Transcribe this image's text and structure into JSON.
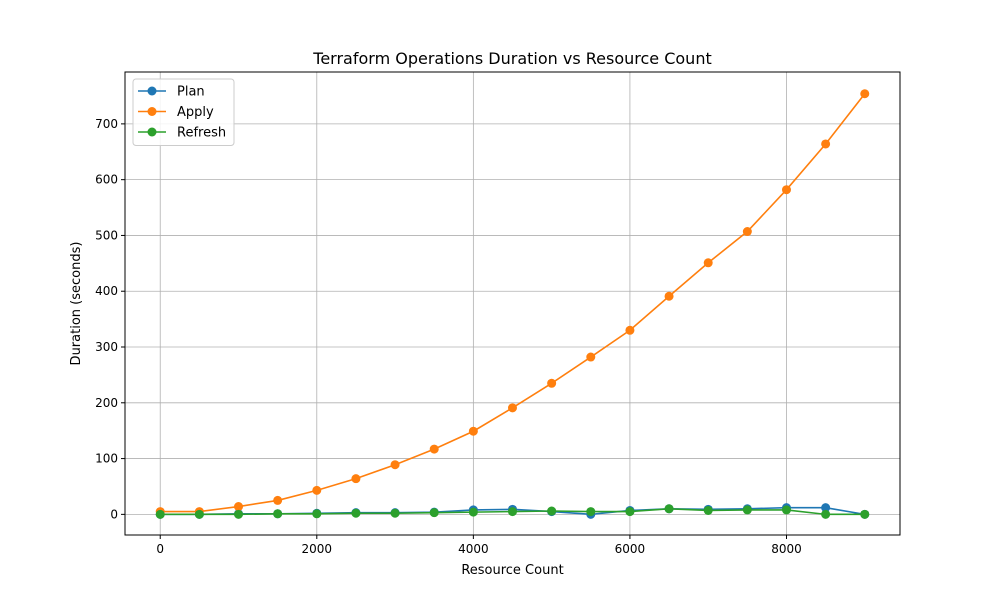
{
  "chart_data": {
    "type": "line",
    "title": "Terraform Operations Duration vs Resource Count",
    "xlabel": "Resource Count",
    "ylabel": "Duration (seconds)",
    "xlim": [
      -450,
      9450
    ],
    "ylim": [
      -37,
      793
    ],
    "x_ticks": [
      0,
      2000,
      4000,
      6000,
      8000
    ],
    "y_ticks": [
      0,
      100,
      200,
      300,
      400,
      500,
      600,
      700
    ],
    "grid": true,
    "legend_position": "top-left",
    "x": [
      0,
      500,
      1000,
      1500,
      2000,
      2500,
      3000,
      3500,
      4000,
      4500,
      5000,
      5500,
      6000,
      6500,
      7000,
      7500,
      8000,
      8500,
      9000
    ],
    "series": [
      {
        "name": "Plan",
        "color": "#1f77b4",
        "values": [
          0,
          0,
          1,
          1,
          2,
          3,
          3,
          4,
          8,
          9,
          5,
          0,
          7,
          10,
          9,
          10,
          12,
          12,
          0
        ]
      },
      {
        "name": "Apply",
        "color": "#ff7f0e",
        "values": [
          5,
          5,
          14,
          25,
          43,
          64,
          89,
          117,
          149,
          191,
          235,
          282,
          330,
          391,
          451,
          507,
          582,
          664,
          754
        ]
      },
      {
        "name": "Refresh",
        "color": "#2ca02c",
        "values": [
          0,
          0,
          0,
          1,
          1,
          2,
          2,
          3,
          4,
          5,
          6,
          5,
          5,
          10,
          7,
          8,
          8,
          0,
          0
        ]
      }
    ]
  }
}
